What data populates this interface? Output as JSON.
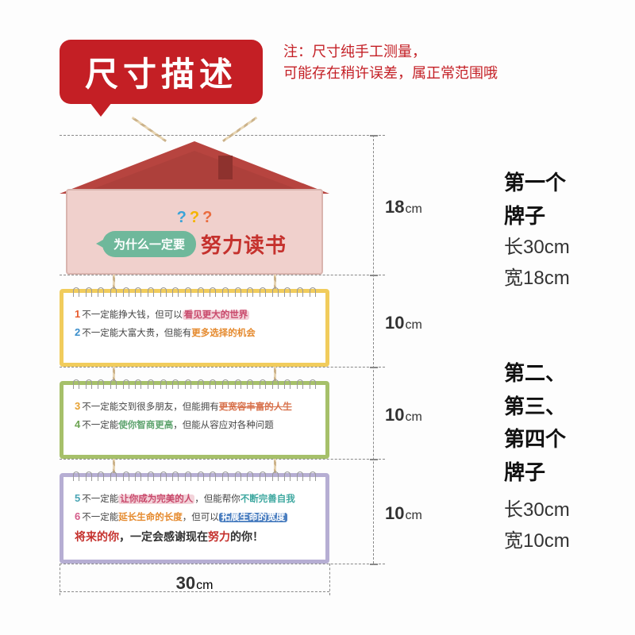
{
  "colors": {
    "badge_bg": "#c41f25",
    "badge_text": "#ffffff",
    "note_text": "#c41f25",
    "roof": "#b7443f",
    "roof_shadow": "#8e322e",
    "hanger_body": "#f0d0cc",
    "card_yellow": "#f1cc5c",
    "card_green": "#a6c06a",
    "card_purple": "#b6aed3",
    "dash": "#888888"
  },
  "header": {
    "title": "尺寸描述",
    "note_line1": "注：尺寸纯手工测量，",
    "note_line2": "可能存在稍许误差，属正常范围哦"
  },
  "hanger": {
    "question_marks": [
      "?",
      "?",
      "?"
    ],
    "bubble_text": "为什么一定要",
    "big_text": "努力读书"
  },
  "cards": [
    {
      "style": "yellow",
      "lines": [
        {
          "num": "1",
          "num_class": "n1",
          "pre": "不一定能挣大钱，但可以",
          "hl": "看见更大的世界",
          "hl_class": "hl-pink",
          "post": ""
        },
        {
          "num": "2",
          "num_class": "n2",
          "pre": "不一定能大富大贵，但能有",
          "hl": "更多选择的机会",
          "hl_class": "hl-orange",
          "post": ""
        }
      ]
    },
    {
      "style": "green",
      "lines": [
        {
          "num": "3",
          "num_class": "n3",
          "pre": "不一定能交到很多朋友，但能拥有",
          "hl": "更宽容丰富的人生",
          "hl_class": "hl-strike",
          "post": ""
        },
        {
          "num": "4",
          "num_class": "n4",
          "pre": "不一定能",
          "mid_hl": "使你智商更高",
          "mid_class": "hl-green",
          "pre2": "，但能从容应对各种问题",
          "hl": "",
          "hl_class": "",
          "post": ""
        }
      ]
    },
    {
      "style": "purple",
      "lines": [
        {
          "num": "5",
          "num_class": "n5",
          "pre": "不一定能",
          "mid_hl": "让你成为完美的人",
          "mid_class": "hl-pink",
          "pre2": "，但能帮你",
          "hl": "不断完善自我",
          "hl_class": "hl-teal",
          "post": ""
        },
        {
          "num": "6",
          "num_class": "n6",
          "pre": "不一定能",
          "mid_hl": "延长生命的长度",
          "mid_class": "hl-orange",
          "pre2": "，但可以",
          "hl": "拓展生命的宽度",
          "hl_class": "hl-blue",
          "post": ""
        }
      ],
      "footer": {
        "a": "将来的你",
        "b": "，一定会感谢现在",
        "c": "努力",
        "d": "的你！"
      }
    }
  ],
  "dimensions": {
    "heights": [
      {
        "value": "18",
        "unit": "cm"
      },
      {
        "value": "10",
        "unit": "cm"
      },
      {
        "value": "10",
        "unit": "cm"
      },
      {
        "value": "10",
        "unit": "cm"
      }
    ],
    "width": {
      "value": "30",
      "unit": "cm"
    }
  },
  "right_labels": {
    "block1": {
      "title": "第一个牌子",
      "length": "长30cm",
      "width": "宽18cm"
    },
    "block2": {
      "title_l1": "第二、第三、",
      "title_l2": "第四个牌子",
      "length": "长30cm",
      "width": "宽10cm"
    }
  }
}
